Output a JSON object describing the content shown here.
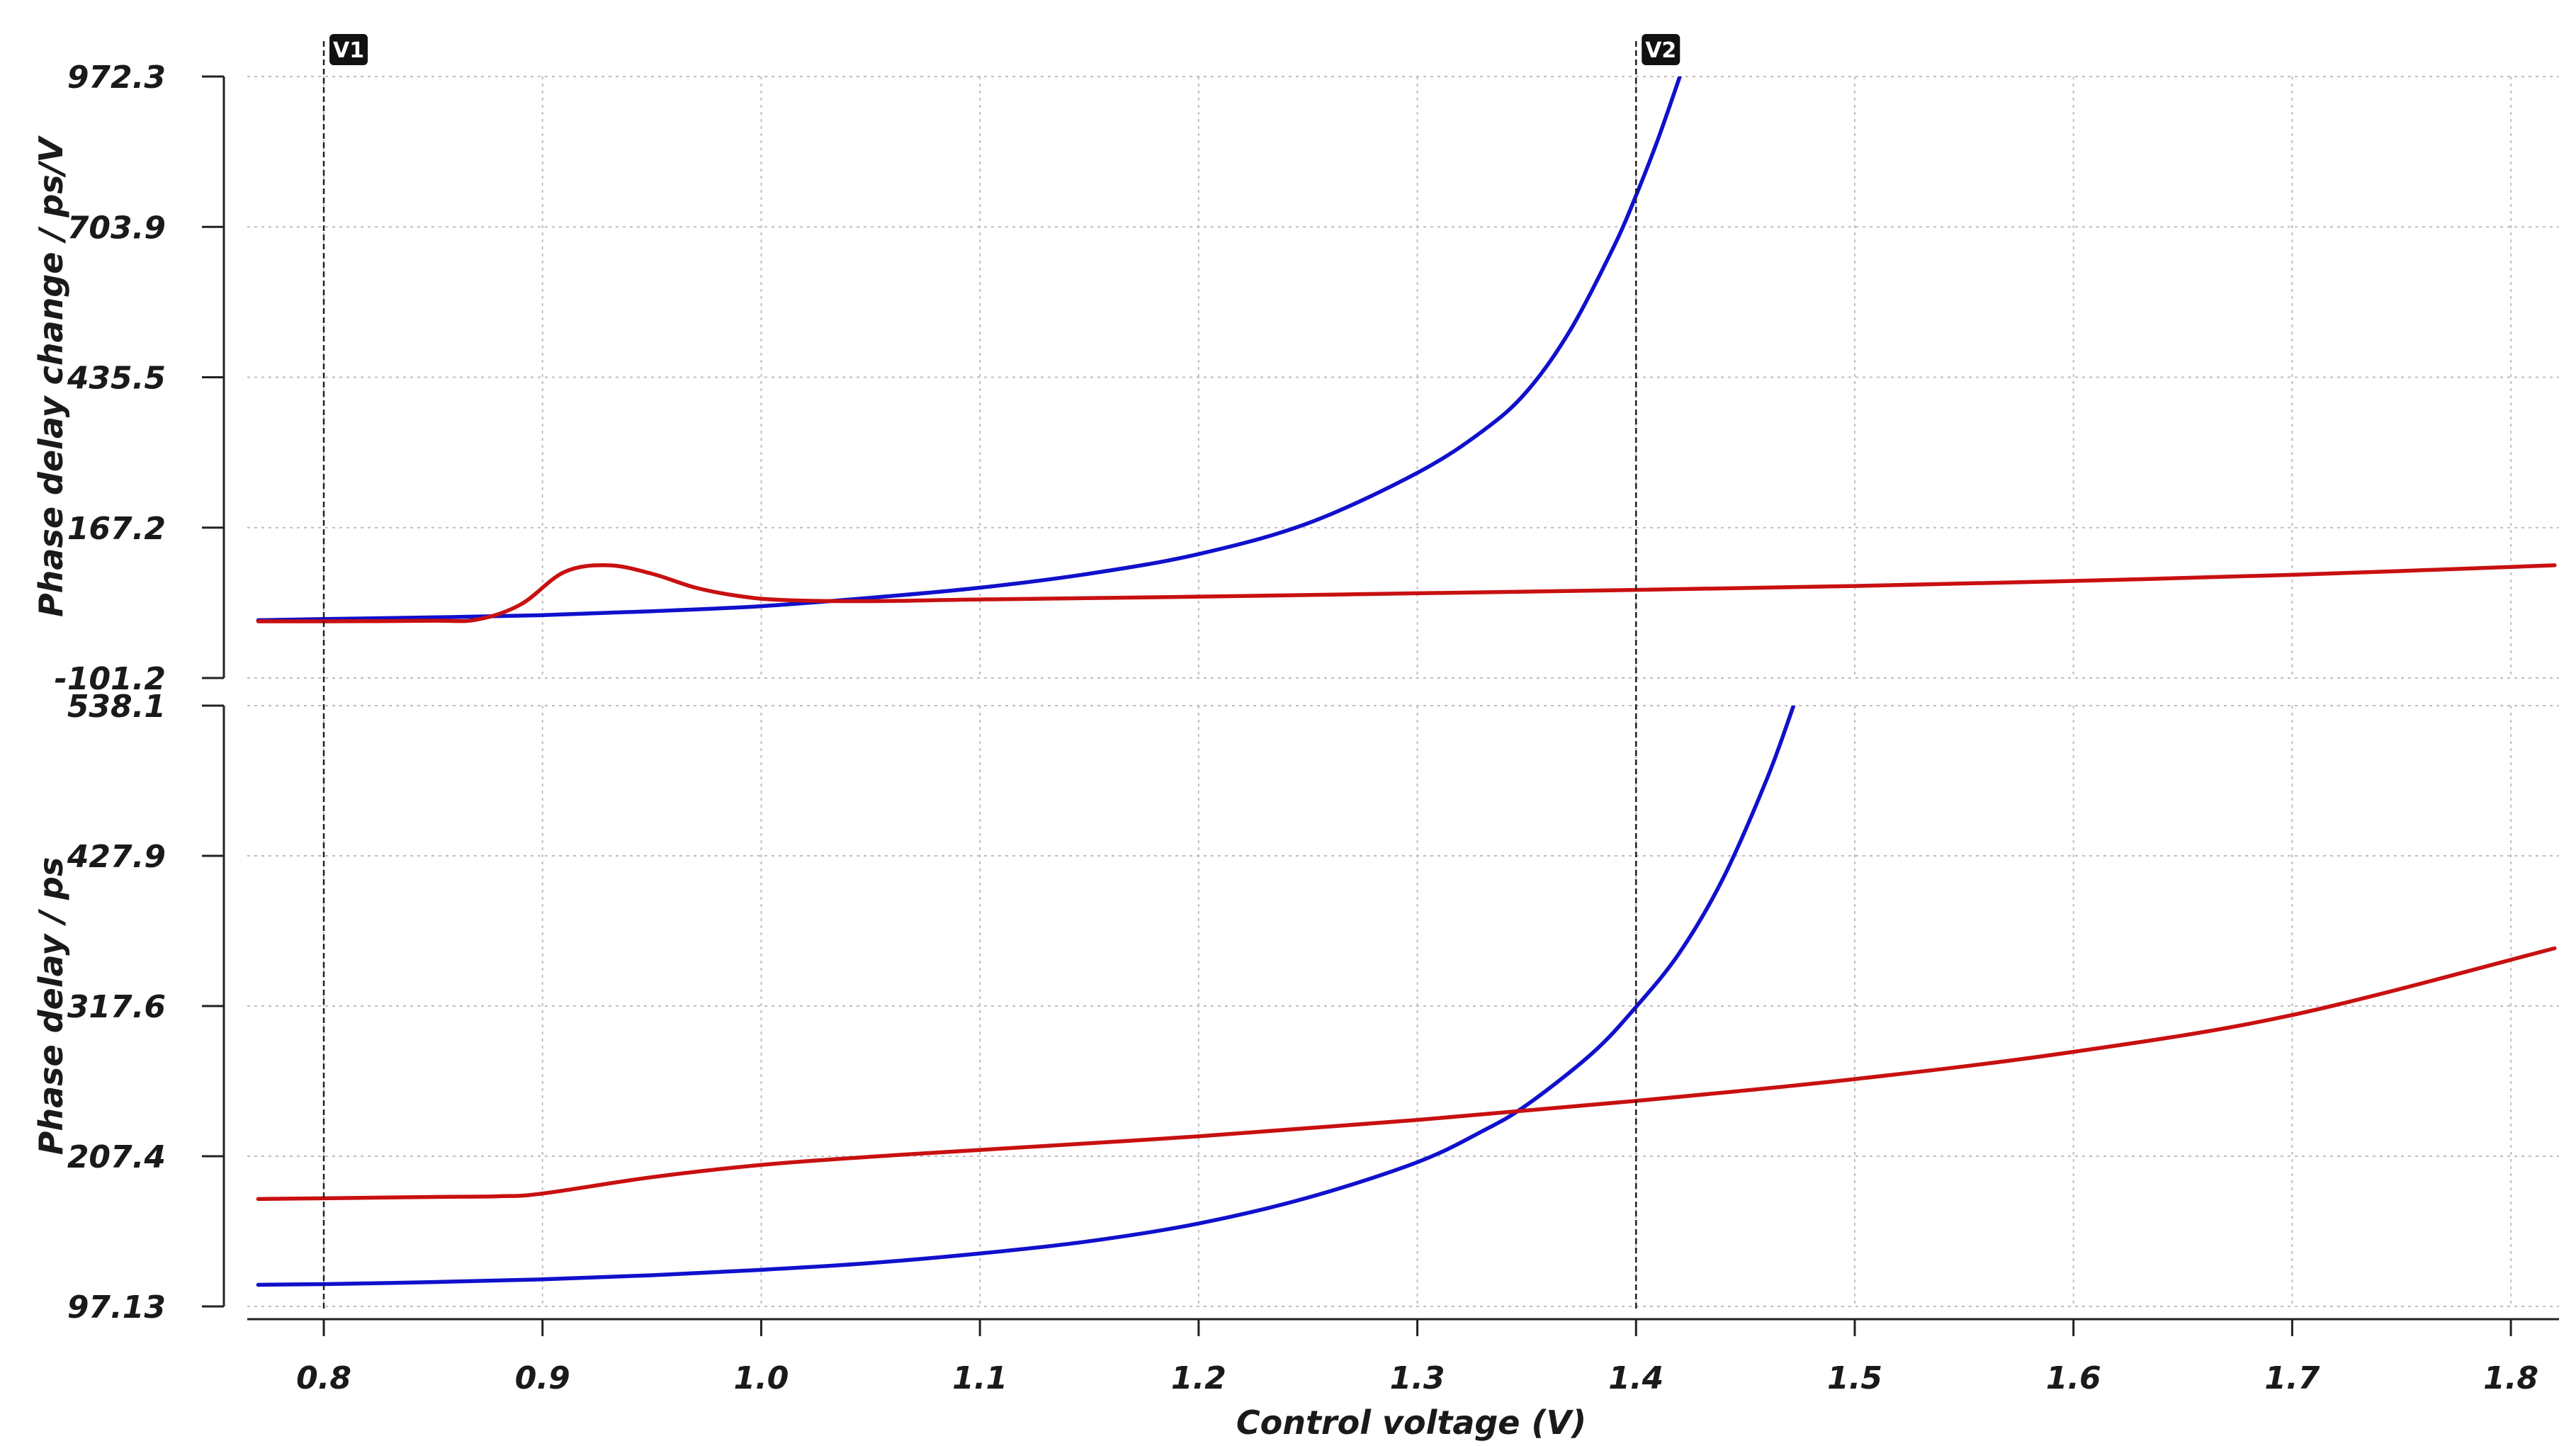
{
  "chart_data": [
    {
      "type": "line",
      "ylabel": "Phase delay change / ps/V",
      "ylim": [
        -101.2,
        972.3
      ],
      "yticks": [
        "972.3",
        "703.9",
        "435.5",
        "167.2",
        "-101.2"
      ],
      "grid": true,
      "series": [
        {
          "color": "#1010cc",
          "x": [
            0.77,
            0.8,
            0.85,
            0.9,
            0.95,
            1.0,
            1.05,
            1.1,
            1.15,
            1.2,
            1.25,
            1.3,
            1.33,
            1.35,
            1.37,
            1.39,
            1.4,
            1.41,
            1.42
          ],
          "y": [
            2,
            4,
            7,
            11,
            18,
            27,
            42,
            60,
            85,
            120,
            175,
            265,
            340,
            410,
            520,
            670,
            760,
            860,
            972
          ]
        },
        {
          "color": "#c81010",
          "x": [
            0.77,
            0.8,
            0.85,
            0.87,
            0.89,
            0.91,
            0.93,
            0.95,
            0.97,
            0.99,
            1.01,
            1.05,
            1.1,
            1.2,
            1.3,
            1.4,
            1.5,
            1.6,
            1.7,
            1.82
          ],
          "y": [
            0,
            0,
            1,
            3,
            30,
            88,
            100,
            85,
            60,
            45,
            38,
            36,
            39,
            44,
            50,
            56,
            63,
            72,
            83,
            100
          ]
        }
      ]
    },
    {
      "type": "line",
      "ylabel": "Phase delay / ps",
      "xlabel": "Control voltage (V)",
      "ylim": [
        97.13,
        538.1
      ],
      "xlim": [
        0.765,
        1.822
      ],
      "yticks": [
        "538.1",
        "427.9",
        "317.6",
        "207.4",
        "97.13"
      ],
      "xticks": [
        "0.8",
        "0.9",
        "1.0",
        "1.1",
        "1.2",
        "1.3",
        "1.4",
        "1.5",
        "1.6",
        "1.7",
        "1.8"
      ],
      "grid": true,
      "series": [
        {
          "color": "#1010cc",
          "x": [
            0.77,
            0.8,
            0.85,
            0.9,
            0.95,
            1.0,
            1.05,
            1.1,
            1.15,
            1.2,
            1.25,
            1.3,
            1.33,
            1.35,
            1.38,
            1.4,
            1.42,
            1.44,
            1.46,
            1.472
          ],
          "y": [
            113,
            113.5,
            115,
            117,
            120,
            124,
            129,
            136,
            145,
            158,
            177,
            203,
            226,
            245,
            283,
            317,
            357,
            412,
            485,
            538
          ]
        },
        {
          "color": "#c81010",
          "x": [
            0.77,
            0.8,
            0.85,
            0.88,
            0.9,
            0.95,
            1.0,
            1.05,
            1.1,
            1.2,
            1.3,
            1.4,
            1.5,
            1.6,
            1.7,
            1.82
          ],
          "y": [
            176,
            176.5,
            177.5,
            178,
            180,
            192,
            201,
            207,
            212,
            222,
            234,
            248,
            264,
            284,
            311,
            360
          ]
        }
      ]
    }
  ],
  "markers": [
    {
      "label": "V1",
      "x": 0.8
    },
    {
      "label": "V2",
      "x": 1.4
    }
  ]
}
